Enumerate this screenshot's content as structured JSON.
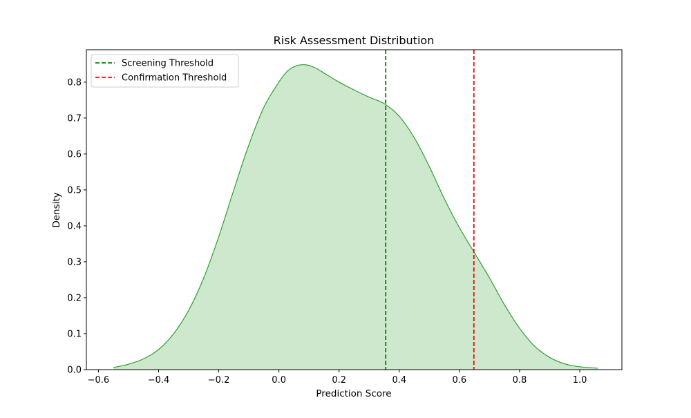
{
  "chart_data": {
    "type": "area",
    "title": "Risk Assessment Distribution",
    "xlabel": "Prediction Score",
    "ylabel": "Density",
    "xlim": [
      -0.64,
      1.14
    ],
    "ylim": [
      0,
      0.89
    ],
    "xticks": [
      -0.6,
      -0.4,
      -0.2,
      0.0,
      0.2,
      0.4,
      0.6,
      0.8,
      1.0
    ],
    "xtick_labels": [
      "−0.6",
      "−0.4",
      "−0.2",
      "0.0",
      "0.2",
      "0.4",
      "0.6",
      "0.8",
      "1.0"
    ],
    "yticks": [
      0.0,
      0.1,
      0.2,
      0.3,
      0.4,
      0.5,
      0.6,
      0.7,
      0.8
    ],
    "ytick_labels": [
      "0.0",
      "0.1",
      "0.2",
      "0.3",
      "0.4",
      "0.5",
      "0.6",
      "0.7",
      "0.8"
    ],
    "grid": false,
    "legend_position": "top-left",
    "series": [
      {
        "color": "#2ca02c",
        "fill_color": "#2ca02c",
        "fill_opacity": 0.24,
        "x": [
          -0.55,
          -0.5,
          -0.45,
          -0.4,
          -0.35,
          -0.3,
          -0.25,
          -0.2,
          -0.15,
          -0.1,
          -0.05,
          0.0,
          0.03,
          0.06,
          0.09,
          0.12,
          0.15,
          0.2,
          0.25,
          0.3,
          0.35,
          0.4,
          0.45,
          0.5,
          0.55,
          0.6,
          0.65,
          0.7,
          0.75,
          0.8,
          0.85,
          0.9,
          0.95,
          1.0,
          1.06
        ],
        "y": [
          0.006,
          0.015,
          0.03,
          0.056,
          0.1,
          0.165,
          0.255,
          0.37,
          0.5,
          0.625,
          0.73,
          0.8,
          0.832,
          0.846,
          0.848,
          0.84,
          0.825,
          0.8,
          0.778,
          0.758,
          0.74,
          0.705,
          0.645,
          0.565,
          0.475,
          0.395,
          0.325,
          0.255,
          0.18,
          0.115,
          0.065,
          0.034,
          0.016,
          0.008,
          0.004
        ]
      }
    ],
    "thresholds": [
      {
        "name": "Screening Threshold",
        "x": 0.355,
        "color": "#008000",
        "style": "dashed"
      },
      {
        "name": "Confirmation Threshold",
        "x": 0.648,
        "color": "#ff0000",
        "style": "dashed"
      }
    ]
  }
}
